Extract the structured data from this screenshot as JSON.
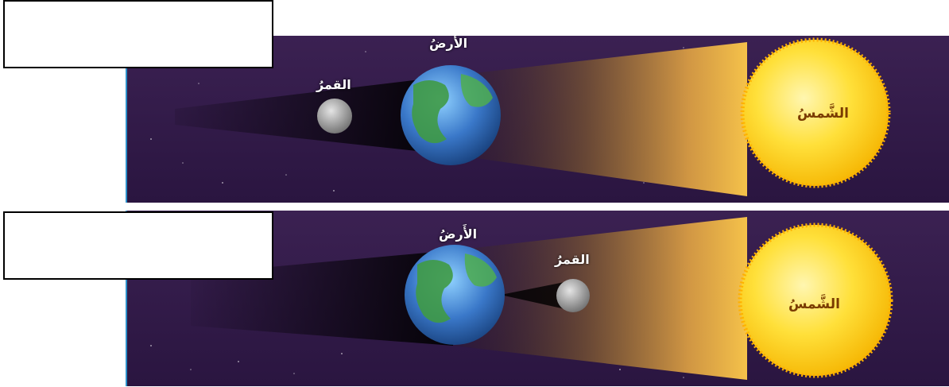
{
  "panels": [
    {
      "id": "lunar-eclipse",
      "sun_label": "الشَّمسُ",
      "earth_label": "الأَرضُ",
      "moon_label": "القمرُ"
    },
    {
      "id": "solar-eclipse",
      "sun_label": "الشَّمسُ",
      "earth_label": "الأَرضُ",
      "moon_label": "القمرُ"
    }
  ],
  "answer_boxes": [
    {
      "text": ""
    },
    {
      "text": ""
    }
  ],
  "colors": {
    "space": "#3a1f4e",
    "panel_border": "#2c8fc9",
    "sun": "#ffd21f",
    "sunlight": "#f2b84b",
    "earth_land": "#3f9a45",
    "earth_water": "#3a78c9",
    "moon": "#b8b8b8"
  }
}
